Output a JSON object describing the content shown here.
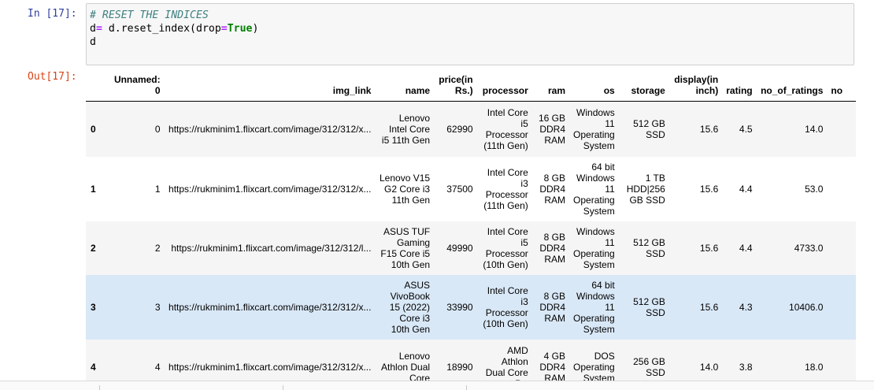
{
  "input_cell": {
    "prompt": "In [17]:",
    "comment": "# RESET THE INDICES",
    "line2_var": "d",
    "line2_op": "=",
    "line2_rest": " d.reset_index(drop",
    "line2_eq": "=",
    "line2_kw": "True",
    "line2_close": ")",
    "line3": "d"
  },
  "output_cell": {
    "prompt": "Out[17]:"
  },
  "table": {
    "columns": [
      "",
      "Unnamed: 0",
      "img_link",
      "name",
      "price(in Rs.)",
      "processor",
      "ram",
      "os",
      "storage",
      "display(in inch)",
      "rating",
      "no_of_ratings",
      "no"
    ],
    "rows": [
      {
        "index": "0",
        "unnamed": "0",
        "img_link": "https://rukminim1.flixcart.com/image/312/312/x...",
        "name": "Lenovo Intel Core i5 11th Gen",
        "price": "62990",
        "processor": "Intel Core i5 Processor (11th Gen)",
        "ram": "16 GB DDR4 RAM",
        "os": "Windows 11 Operating System",
        "storage": "512 GB SSD",
        "display": "15.6",
        "rating": "4.5",
        "no_of_ratings": "14.0"
      },
      {
        "index": "1",
        "unnamed": "1",
        "img_link": "https://rukminim1.flixcart.com/image/312/312/x...",
        "name": "Lenovo V15 G2 Core i3 11th Gen",
        "price": "37500",
        "processor": "Intel Core i3 Processor (11th Gen)",
        "ram": "8 GB DDR4 RAM",
        "os": "64 bit Windows 11 Operating System",
        "storage": "1 TB HDD|256 GB SSD",
        "display": "15.6",
        "rating": "4.4",
        "no_of_ratings": "53.0"
      },
      {
        "index": "2",
        "unnamed": "2",
        "img_link": "https://rukminim1.flixcart.com/image/312/312/l...",
        "name": "ASUS TUF Gaming F15 Core i5 10th Gen",
        "price": "49990",
        "processor": "Intel Core i5 Processor (10th Gen)",
        "ram": "8 GB DDR4 RAM",
        "os": "Windows 11 Operating System",
        "storage": "512 GB SSD",
        "display": "15.6",
        "rating": "4.4",
        "no_of_ratings": "4733.0"
      },
      {
        "index": "3",
        "unnamed": "3",
        "img_link": "https://rukminim1.flixcart.com/image/312/312/x...",
        "name": "ASUS VivoBook 15 (2022) Core i3 10th Gen",
        "price": "33990",
        "processor": "Intel Core i3 Processor (10th Gen)",
        "ram": "8 GB DDR4 RAM",
        "os": "64 bit Windows 11 Operating System",
        "storage": "512 GB SSD",
        "display": "15.6",
        "rating": "4.3",
        "no_of_ratings": "10406.0"
      },
      {
        "index": "4",
        "unnamed": "4",
        "img_link": "https://rukminim1.flixcart.com/image/312/312/x...",
        "name": "Lenovo Athlon Dual Core",
        "price": "18990",
        "processor": "AMD Athlon Dual Core P...",
        "ram": "4 GB DDR4 RAM",
        "os": "DOS Operating System",
        "storage": "256 GB SSD",
        "display": "14.0",
        "rating": "3.8",
        "no_of_ratings": "18.0"
      }
    ]
  }
}
